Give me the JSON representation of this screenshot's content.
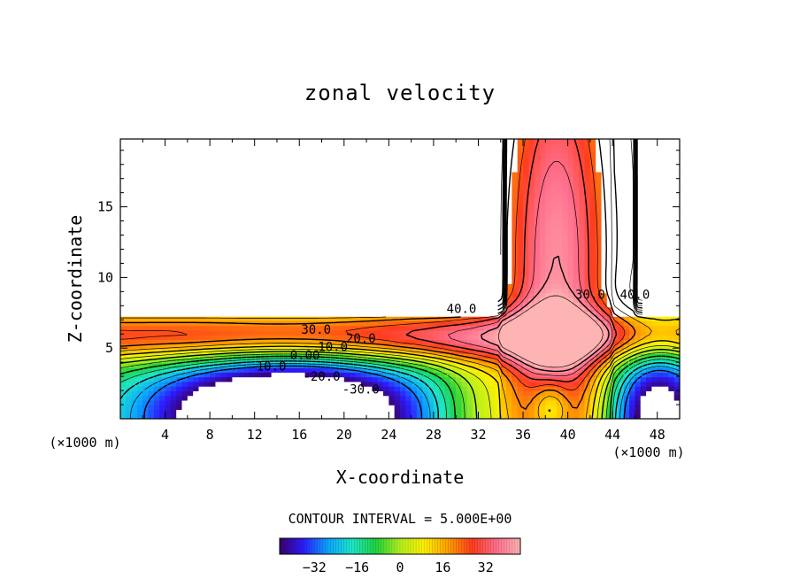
{
  "chart_data": {
    "type": "contour",
    "title": "zonal velocity",
    "xlabel": "X-coordinate",
    "ylabel": "Z-coordinate",
    "x_units_left": "(×1000 m)",
    "x_units_right": "(×1000 m)",
    "xlim": [
      0,
      50
    ],
    "ylim": [
      0,
      19.8
    ],
    "x_ticks": [
      4,
      8,
      12,
      16,
      20,
      24,
      28,
      32,
      36,
      40,
      44,
      48
    ],
    "y_ticks": [
      5,
      10,
      15
    ],
    "contour_interval_label": "CONTOUR INTERVAL = 5.000E+00",
    "contour_levels": [
      -30,
      -25,
      -20,
      -15,
      -10,
      -5,
      0,
      5,
      10,
      15,
      20,
      25,
      30,
      35,
      40,
      45
    ],
    "contour_labels": [
      {
        "text": "40.0",
        "x": 30.5,
        "z": 7.5
      },
      {
        "text": "30.0",
        "x": 17.5,
        "z": 6.0
      },
      {
        "text": "20.0",
        "x": 21.5,
        "z": 5.4
      },
      {
        "text": "10.0",
        "x": 19.0,
        "z": 4.8
      },
      {
        "text": "0.00",
        "x": 16.5,
        "z": 4.2
      },
      {
        "text": "10.0",
        "x": 13.5,
        "z": 3.4
      },
      {
        "text": "-20.0",
        "x": 18.0,
        "z": 2.7
      },
      {
        "text": "-30.0",
        "x": 21.5,
        "z": 1.8
      },
      {
        "text": "30.0",
        "x": 42.0,
        "z": 8.5
      },
      {
        "text": "40.0",
        "x": 46.0,
        "z": 8.5
      }
    ],
    "colorbar": {
      "ticks": [
        "-32",
        "-16",
        "0",
        "16",
        "32"
      ],
      "tick_values": [
        -32,
        -16,
        0,
        16,
        32
      ],
      "range": [
        -45,
        45
      ],
      "colors": [
        "#3a006a",
        "#2d1cff",
        "#0aa4ff",
        "#1ee6c8",
        "#1ed23c",
        "#b4f01e",
        "#fff000",
        "#ffa000",
        "#ff3c1e",
        "#ff6e8c",
        "#ffb4b4"
      ]
    }
  }
}
